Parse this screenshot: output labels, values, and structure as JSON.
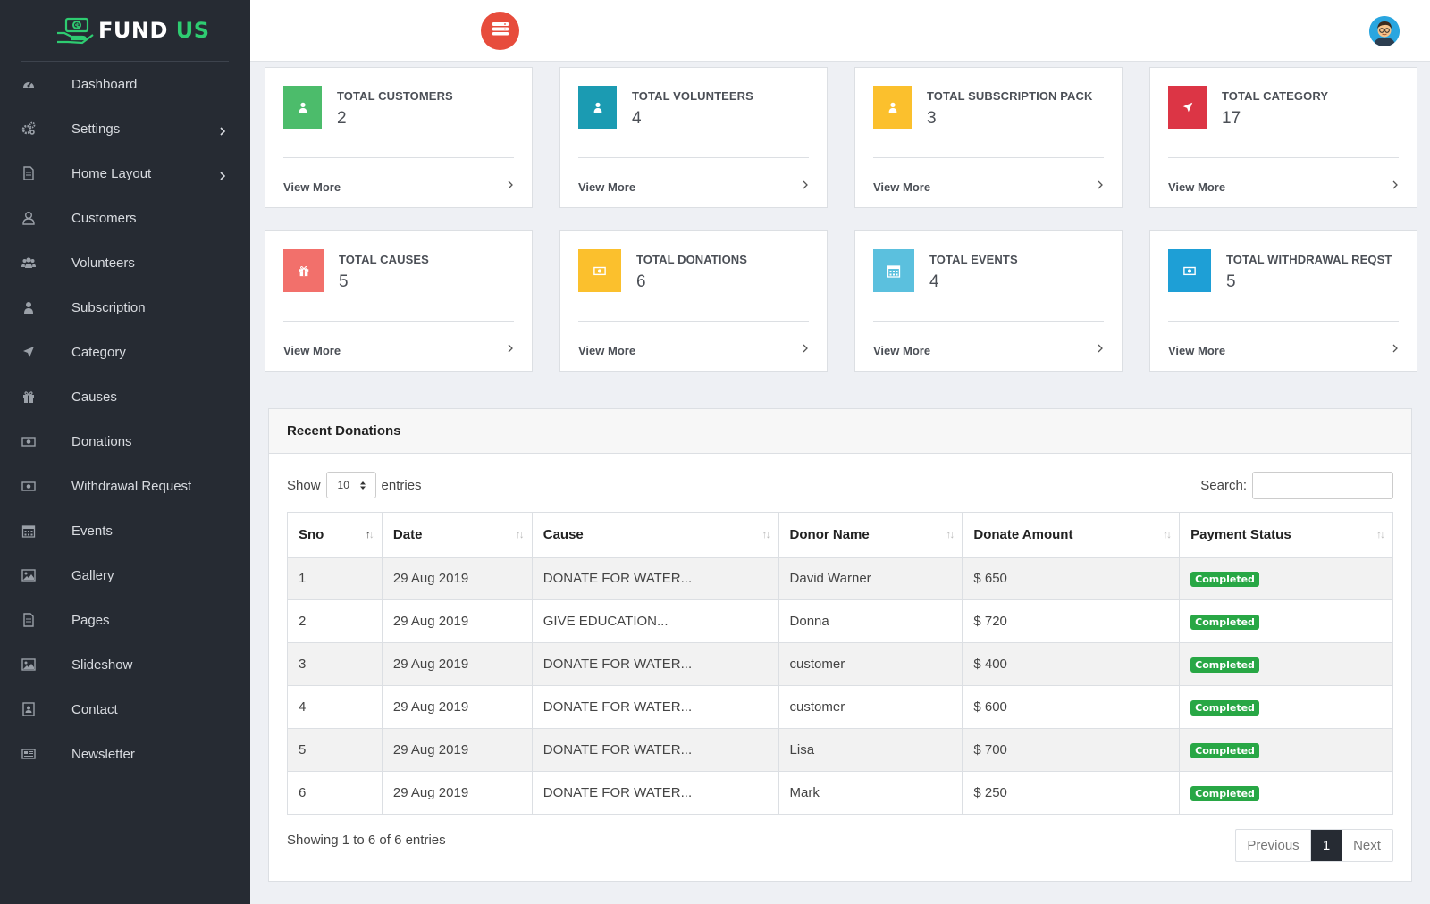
{
  "brand": {
    "name_part1": "FUND",
    "name_part2": "US",
    "accent": "#2ecc71"
  },
  "sidebar": {
    "items": [
      {
        "label": "Dashboard",
        "icon": "dashboard-icon",
        "has_submenu": false
      },
      {
        "label": "Settings",
        "icon": "gears-icon",
        "has_submenu": true
      },
      {
        "label": "Home Layout",
        "icon": "file-icon",
        "has_submenu": true
      },
      {
        "label": "Customers",
        "icon": "user-outline-icon",
        "has_submenu": false
      },
      {
        "label": "Volunteers",
        "icon": "users-icon",
        "has_submenu": false
      },
      {
        "label": "Subscription",
        "icon": "user-icon",
        "has_submenu": false
      },
      {
        "label": "Category",
        "icon": "location-arrow-icon",
        "has_submenu": false
      },
      {
        "label": "Causes",
        "icon": "gift-icon",
        "has_submenu": false
      },
      {
        "label": "Donations",
        "icon": "money-icon",
        "has_submenu": false
      },
      {
        "label": "Withdrawal Request",
        "icon": "money-icon",
        "has_submenu": false
      },
      {
        "label": "Events",
        "icon": "calendar-icon",
        "has_submenu": false
      },
      {
        "label": "Gallery",
        "icon": "image-icon",
        "has_submenu": false
      },
      {
        "label": "Pages",
        "icon": "file-icon",
        "has_submenu": false
      },
      {
        "label": "Slideshow",
        "icon": "image-icon",
        "has_submenu": false
      },
      {
        "label": "Contact",
        "icon": "contact-card-icon",
        "has_submenu": false
      },
      {
        "label": "Newsletter",
        "icon": "newspaper-icon",
        "has_submenu": false
      }
    ]
  },
  "cards": [
    {
      "title": "TOTAL CUSTOMERS",
      "value": "2",
      "link": "View More",
      "color": "#4cbc6b",
      "icon": "user-icon"
    },
    {
      "title": "TOTAL VOLUNTEERS",
      "value": "4",
      "link": "View More",
      "color": "#1b9bb2",
      "icon": "user-icon"
    },
    {
      "title": "TOTAL SUBSCRIPTION PACK",
      "value": "3",
      "link": "View More",
      "color": "#fbc02d",
      "icon": "user-icon"
    },
    {
      "title": "TOTAL CATEGORY",
      "value": "17",
      "link": "View More",
      "color": "#dc3545",
      "icon": "location-arrow-icon"
    },
    {
      "title": "TOTAL CAUSES",
      "value": "5",
      "link": "View More",
      "color": "#f2706b",
      "icon": "gift-icon"
    },
    {
      "title": "TOTAL DONATIONS",
      "value": "6",
      "link": "View More",
      "color": "#fbc02d",
      "icon": "money-icon"
    },
    {
      "title": "TOTAL EVENTS",
      "value": "4",
      "link": "View More",
      "color": "#5bc0de",
      "icon": "calendar-icon"
    },
    {
      "title": "TOTAL WITHDRAWAL REQST",
      "value": "5",
      "link": "View More",
      "color": "#1e9fd6",
      "icon": "money-icon"
    }
  ],
  "donations": {
    "title": "Recent Donations",
    "show_label": "Show",
    "entries_label": "entries",
    "page_length": "10",
    "search_label": "Search:",
    "search_value": "",
    "columns": [
      "Sno",
      "Date",
      "Cause",
      "Donor Name",
      "Donate Amount",
      "Payment Status"
    ],
    "rows": [
      [
        "1",
        "29 Aug 2019",
        "DONATE FOR WATER...",
        "David Warner",
        "$ 650",
        "Completed"
      ],
      [
        "2",
        "29 Aug 2019",
        "GIVE EDUCATION...",
        "Donna",
        "$ 720",
        "Completed"
      ],
      [
        "3",
        "29 Aug 2019",
        "DONATE FOR WATER...",
        "customer",
        "$ 400",
        "Completed"
      ],
      [
        "4",
        "29 Aug 2019",
        "DONATE FOR WATER...",
        "customer",
        "$ 600",
        "Completed"
      ],
      [
        "5",
        "29 Aug 2019",
        "DONATE FOR WATER...",
        "Lisa",
        "$ 700",
        "Completed"
      ],
      [
        "6",
        "29 Aug 2019",
        "DONATE FOR WATER...",
        "Mark",
        "$ 250",
        "Completed"
      ]
    ],
    "info": "Showing 1 to 6 of 6 entries",
    "pagination": {
      "previous": "Previous",
      "current": "1",
      "next": "Next"
    },
    "status_color": "#28a745"
  }
}
